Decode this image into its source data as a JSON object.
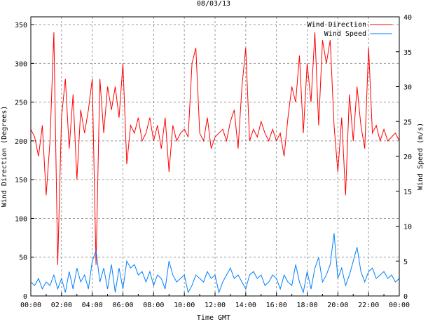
{
  "chart_data": {
    "type": "line",
    "title": "08/03/13",
    "xlabel": "Time GMT",
    "ylabel": "Wind Direction (Degrees)",
    "y2label": "Wind Speed (m/s)",
    "xlim": [
      0,
      24
    ],
    "ylim": [
      0,
      360
    ],
    "y2lim": [
      0,
      40
    ],
    "grid": true,
    "legend": "top-right",
    "x_ticks": [
      "00:00",
      "02:00",
      "04:00",
      "06:00",
      "08:00",
      "10:00",
      "12:00",
      "14:00",
      "16:00",
      "18:00",
      "20:00",
      "22:00",
      "00:00"
    ],
    "y_ticks": [
      "0",
      "50",
      "100",
      "150",
      "200",
      "250",
      "300",
      "350"
    ],
    "y2_ticks": [
      "0",
      "5",
      "10",
      "15",
      "20",
      "25",
      "30",
      "35",
      "40"
    ],
    "x_step_hours": 0.25,
    "series": [
      {
        "name": "Wind Direction",
        "color": "#ff0000",
        "axis": "left",
        "values": [
          215,
          205,
          180,
          220,
          130,
          200,
          340,
          40,
          230,
          280,
          190,
          260,
          150,
          240,
          210,
          240,
          280,
          40,
          280,
          210,
          270,
          240,
          270,
          230,
          300,
          170,
          220,
          210,
          230,
          200,
          210,
          230,
          200,
          220,
          190,
          230,
          160,
          220,
          200,
          210,
          215,
          205,
          300,
          320,
          210,
          200,
          230,
          190,
          205,
          210,
          215,
          200,
          225,
          240,
          190,
          270,
          320,
          200,
          215,
          205,
          225,
          210,
          200,
          215,
          200,
          210,
          180,
          230,
          270,
          250,
          310,
          210,
          300,
          250,
          340,
          220,
          330,
          300,
          330,
          220,
          160,
          230,
          130,
          260,
          200,
          270,
          220,
          190,
          320,
          210,
          220,
          200,
          215,
          200,
          205,
          210,
          200
        ]
      },
      {
        "name": "Wind Speed",
        "color": "#0080ff",
        "axis": "right",
        "values": [
          2,
          1.5,
          2.5,
          1,
          2,
          1.5,
          3,
          1,
          2.5,
          0.5,
          3.5,
          1,
          4,
          2,
          3,
          1,
          5,
          6.5,
          2,
          4,
          1,
          4.5,
          0.5,
          4,
          1,
          5,
          4,
          4.5,
          3,
          3.5,
          2,
          3.5,
          1.5,
          3,
          2.5,
          1,
          5,
          3,
          2,
          2.5,
          3,
          0.5,
          1.5,
          3,
          2.5,
          2,
          3.5,
          2.5,
          3,
          0.5,
          2,
          3,
          4,
          2.5,
          3,
          2,
          1,
          3,
          3.5,
          2.5,
          3,
          1.5,
          2,
          3,
          2.5,
          1,
          3,
          2,
          1.5,
          4.5,
          2,
          0.5,
          3.5,
          1,
          4,
          5.5,
          2,
          3,
          4.5,
          9,
          2.5,
          4,
          1.5,
          3,
          5,
          7,
          3.5,
          2,
          3.5,
          4,
          2.5,
          3,
          3.5,
          2.5,
          3,
          2,
          2.5
        ]
      }
    ]
  }
}
